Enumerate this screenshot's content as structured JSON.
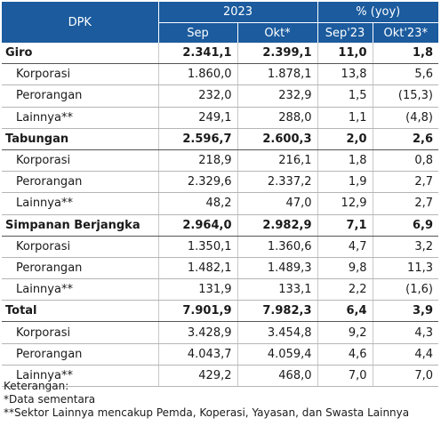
{
  "header": {
    "dpk": "DPK",
    "group_2023": "2023",
    "group_yoy": "% (yoy)",
    "col_sep": "Sep",
    "col_okt": "Okt*",
    "col_sep23": "Sep'23",
    "col_okt23": "Okt'23*"
  },
  "rows": [
    {
      "type": "cat",
      "label": "Giro",
      "sep": "2.341,1",
      "okt": "2.399,1",
      "yoy_sep": "11,0",
      "yoy_okt": "1,8"
    },
    {
      "type": "sub",
      "label": "Korporasi",
      "sep": "1.860,0",
      "okt": "1.878,1",
      "yoy_sep": "13,8",
      "yoy_okt": "5,6"
    },
    {
      "type": "sub",
      "label": "Perorangan",
      "sep": "232,0",
      "okt": "232,9",
      "yoy_sep": "1,5",
      "yoy_okt": "(15,3)"
    },
    {
      "type": "sub",
      "label": "Lainnya**",
      "sep": "249,1",
      "okt": "288,0",
      "yoy_sep": "1,1",
      "yoy_okt": "(4,8)"
    },
    {
      "type": "cat",
      "label": "Tabungan",
      "sep": "2.596,7",
      "okt": "2.600,3",
      "yoy_sep": "2,0",
      "yoy_okt": "2,6"
    },
    {
      "type": "sub",
      "label": "Korporasi",
      "sep": "218,9",
      "okt": "216,1",
      "yoy_sep": "1,8",
      "yoy_okt": "0,8"
    },
    {
      "type": "sub",
      "label": "Perorangan",
      "sep": "2.329,6",
      "okt": "2.337,2",
      "yoy_sep": "1,9",
      "yoy_okt": "2,7"
    },
    {
      "type": "sub",
      "label": "Lainnya**",
      "sep": "48,2",
      "okt": "47,0",
      "yoy_sep": "12,9",
      "yoy_okt": "2,7"
    },
    {
      "type": "cat",
      "label": "Simpanan Berjangka",
      "sep": "2.964,0",
      "okt": "2.982,9",
      "yoy_sep": "7,1",
      "yoy_okt": "6,9"
    },
    {
      "type": "sub",
      "label": "Korporasi",
      "sep": "1.350,1",
      "okt": "1.360,6",
      "yoy_sep": "4,7",
      "yoy_okt": "3,2"
    },
    {
      "type": "sub",
      "label": "Perorangan",
      "sep": "1.482,1",
      "okt": "1.489,3",
      "yoy_sep": "9,8",
      "yoy_okt": "11,3"
    },
    {
      "type": "sub",
      "label": "Lainnya**",
      "sep": "131,9",
      "okt": "133,1",
      "yoy_sep": "2,2",
      "yoy_okt": "(1,6)"
    },
    {
      "type": "cat",
      "label": "Total",
      "sep": "7.901,9",
      "okt": "7.982,3",
      "yoy_sep": "6,4",
      "yoy_okt": "3,9"
    },
    {
      "type": "sub",
      "label": "Korporasi",
      "sep": "3.428,9",
      "okt": "3.454,8",
      "yoy_sep": "9,2",
      "yoy_okt": "4,3"
    },
    {
      "type": "sub",
      "label": "Perorangan",
      "sep": "4.043,7",
      "okt": "4.059,4",
      "yoy_sep": "4,6",
      "yoy_okt": "4,4"
    },
    {
      "type": "sub",
      "label": "Lainnya**",
      "sep": "429,2",
      "okt": "468,0",
      "yoy_sep": "7,0",
      "yoy_okt": "7,0"
    }
  ],
  "notes": {
    "title": "Keterangan:",
    "line1": "*Data sementara",
    "line2": "**Sektor Lainnya mencakup Pemda, Koperasi, Yayasan, dan Swasta Lainnya"
  },
  "colors": {
    "header_bg": "#1b5b9e",
    "header_text": "#ffffff"
  }
}
